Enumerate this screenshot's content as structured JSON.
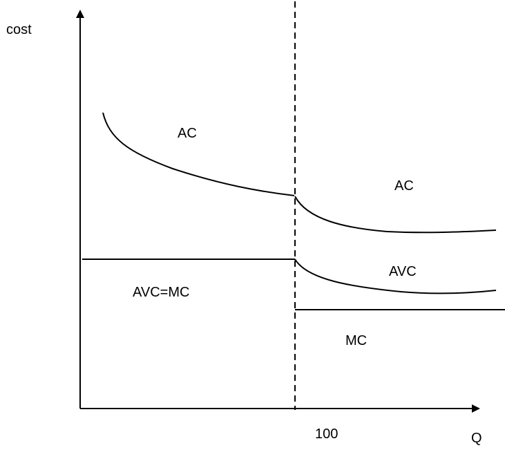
{
  "axes": {
    "y_label": "cost",
    "x_label": "Q",
    "x_tick": "100"
  },
  "curves": {
    "ac_left": "AC",
    "ac_right": "AC",
    "avc_mc_left": "AVC=MC",
    "avc_right": "AVC",
    "mc_right": "MC"
  },
  "colors": {
    "line": "#000000",
    "background": "#ffffff"
  }
}
